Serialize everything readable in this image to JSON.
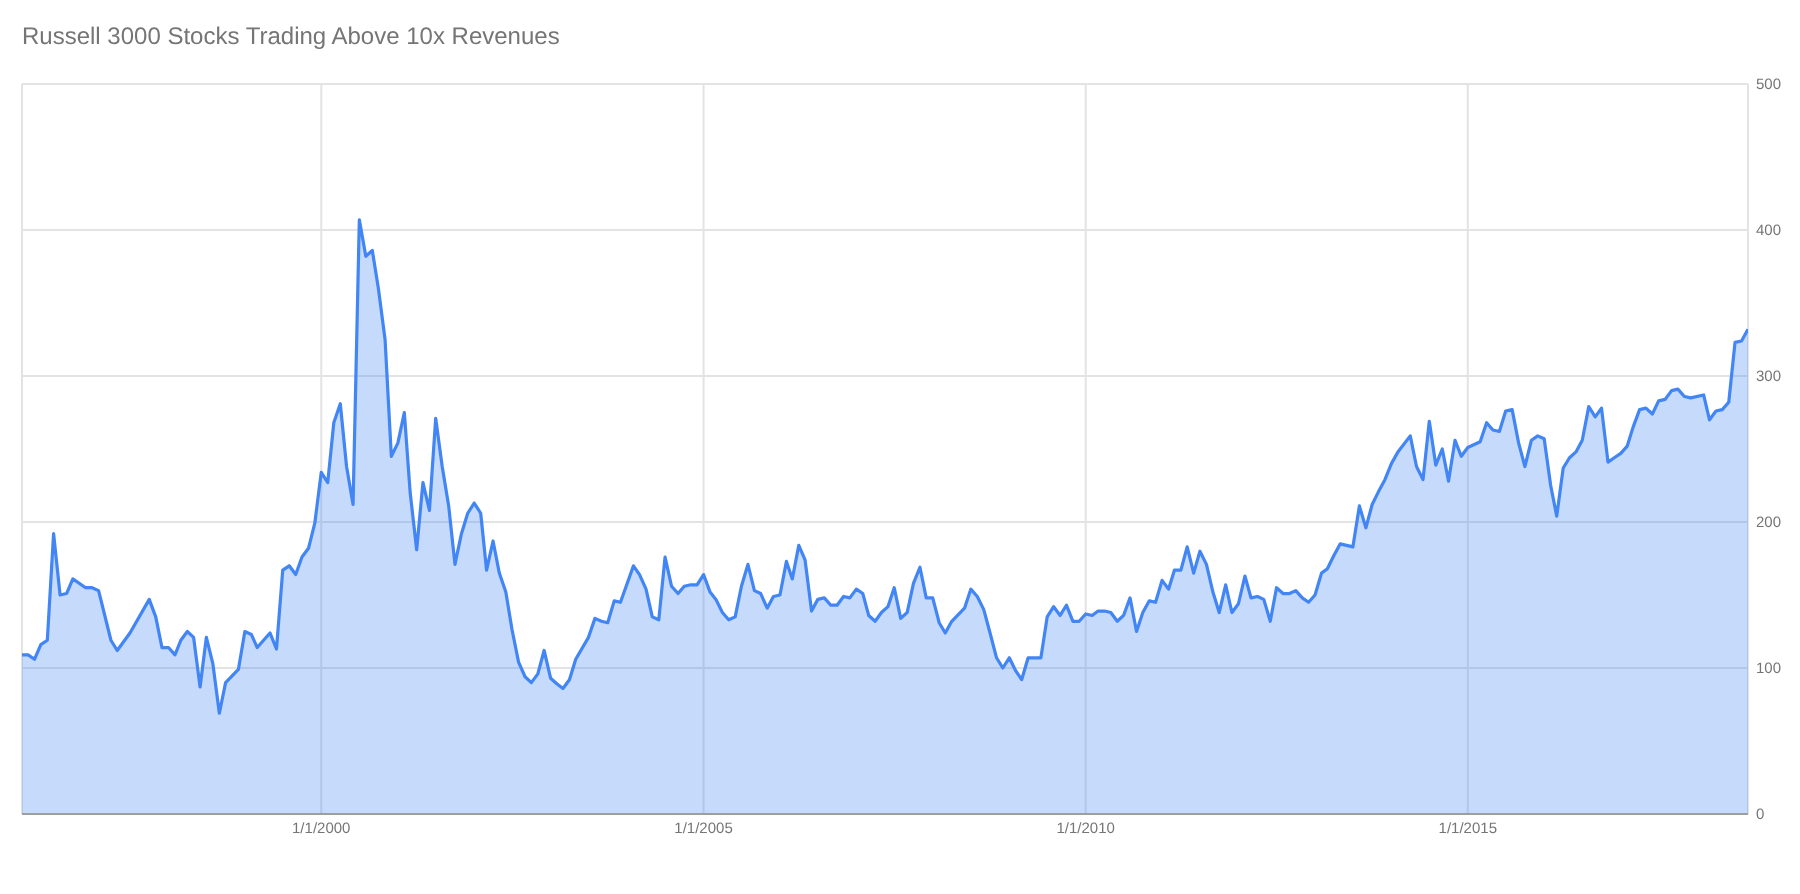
{
  "chart_data": {
    "type": "area",
    "title": "Russell 3000 Stocks Trading Above 10x Revenues",
    "x": [
      "1996-02",
      "1996-03",
      "1996-04",
      "1996-05",
      "1996-06",
      "1996-07",
      "1996-08",
      "1996-09",
      "1996-10",
      "1996-12",
      "1997-01",
      "1997-02",
      "1997-04",
      "1997-05",
      "1997-07",
      "1997-10",
      "1997-11",
      "1997-12",
      "1998-01",
      "1998-02",
      "1998-03",
      "1998-04",
      "1998-05",
      "1998-06",
      "1998-07",
      "1998-08",
      "1998-09",
      "1998-10",
      "1998-12",
      "1999-01",
      "1999-02",
      "1999-03",
      "1999-05",
      "1999-06",
      "1999-07",
      "1999-08",
      "1999-09",
      "1999-10",
      "1999-11",
      "1999-12",
      "2000-01",
      "2000-02",
      "2000-03",
      "2000-04",
      "2000-05",
      "2000-06",
      "2000-07",
      "2000-08",
      "2000-09",
      "2000-10",
      "2000-11",
      "2000-12",
      "2001-01",
      "2001-02",
      "2001-03",
      "2001-04",
      "2001-05",
      "2001-06",
      "2001-07",
      "2001-08",
      "2001-09",
      "2001-10",
      "2001-11",
      "2001-12",
      "2002-01",
      "2002-02",
      "2002-03",
      "2002-04",
      "2002-05",
      "2002-06",
      "2002-07",
      "2002-08",
      "2002-09",
      "2002-10",
      "2002-11",
      "2002-12",
      "2003-01",
      "2003-02",
      "2003-03",
      "2003-04",
      "2003-05",
      "2003-07",
      "2003-08",
      "2003-09",
      "2003-10",
      "2003-11",
      "2003-12",
      "2004-02",
      "2004-03",
      "2004-04",
      "2004-05",
      "2004-06",
      "2004-07",
      "2004-08",
      "2004-09",
      "2004-10",
      "2004-11",
      "2004-12",
      "2005-01",
      "2005-02",
      "2005-03",
      "2005-04",
      "2005-05",
      "2005-06",
      "2005-07",
      "2005-08",
      "2005-09",
      "2005-10",
      "2005-11",
      "2005-12",
      "2006-01",
      "2006-02",
      "2006-03",
      "2006-04",
      "2006-05",
      "2006-06",
      "2006-07",
      "2006-08",
      "2006-09",
      "2006-10",
      "2006-11",
      "2006-12",
      "2007-01",
      "2007-02",
      "2007-03",
      "2007-04",
      "2007-05",
      "2007-06",
      "2007-07",
      "2007-08",
      "2007-09",
      "2007-10",
      "2007-11",
      "2007-12",
      "2008-01",
      "2008-02",
      "2008-03",
      "2008-04",
      "2008-06",
      "2008-07",
      "2008-08",
      "2008-09",
      "2008-10",
      "2008-11",
      "2008-12",
      "2009-01",
      "2009-02",
      "2009-03",
      "2009-04",
      "2009-06",
      "2009-07",
      "2009-08",
      "2009-09",
      "2009-10",
      "2009-11",
      "2009-12",
      "2010-01",
      "2010-02",
      "2010-03",
      "2010-04",
      "2010-05",
      "2010-06",
      "2010-07",
      "2010-08",
      "2010-09",
      "2010-10",
      "2010-11",
      "2010-12",
      "2011-01",
      "2011-02",
      "2011-03",
      "2011-04",
      "2011-05",
      "2011-06",
      "2011-07",
      "2011-08",
      "2011-09",
      "2011-10",
      "2011-11",
      "2011-12",
      "2012-01",
      "2012-02",
      "2012-03",
      "2012-04",
      "2012-05",
      "2012-06",
      "2012-07",
      "2012-08",
      "2012-09",
      "2012-10",
      "2012-11",
      "2012-12",
      "2013-01",
      "2013-02",
      "2013-03",
      "2013-04",
      "2013-05",
      "2013-06",
      "2013-07",
      "2013-08",
      "2013-09",
      "2013-10",
      "2013-11",
      "2013-12",
      "2014-01",
      "2014-02",
      "2014-04",
      "2014-05",
      "2014-06",
      "2014-07",
      "2014-08",
      "2014-09",
      "2014-10",
      "2014-11",
      "2014-12",
      "2015-01",
      "2015-03",
      "2015-04",
      "2015-05",
      "2015-06",
      "2015-07",
      "2015-08",
      "2015-09",
      "2015-10",
      "2015-11",
      "2015-12",
      "2016-01",
      "2016-02",
      "2016-03",
      "2016-04",
      "2016-05",
      "2016-06",
      "2016-07",
      "2016-08",
      "2016-09",
      "2016-10",
      "2016-11",
      "2016-12",
      "2017-01",
      "2017-02",
      "2017-03",
      "2017-04",
      "2017-05",
      "2017-06",
      "2017-07",
      "2017-08",
      "2017-09",
      "2017-10",
      "2017-11",
      "2017-12",
      "2018-02",
      "2018-03",
      "2018-04",
      "2018-05",
      "2018-06",
      "2018-07",
      "2018-08",
      "2018-09"
    ],
    "values": [
      109,
      109,
      106,
      116,
      119,
      192,
      150,
      151,
      161,
      155,
      155,
      153,
      119,
      112,
      124,
      147,
      135,
      114,
      114,
      109,
      119,
      125,
      121,
      87,
      121,
      103,
      69,
      90,
      99,
      125,
      123,
      114,
      124,
      113,
      167,
      170,
      164,
      176,
      182,
      199,
      234,
      227,
      268,
      281,
      238,
      212,
      407,
      382,
      386,
      359,
      325,
      245,
      254,
      275,
      220,
      181,
      227,
      208,
      271,
      238,
      211,
      171,
      192,
      206,
      213,
      206,
      167,
      187,
      165,
      152,
      126,
      104,
      94,
      90,
      96,
      112,
      93,
      89,
      86,
      92,
      106,
      121,
      134,
      132,
      131,
      146,
      145,
      170,
      164,
      154,
      135,
      133,
      176,
      156,
      151,
      156,
      157,
      157,
      164,
      152,
      147,
      138,
      133,
      135,
      156,
      171,
      153,
      151,
      141,
      149,
      150,
      173,
      161,
      184,
      174,
      139,
      147,
      148,
      143,
      143,
      149,
      148,
      154,
      151,
      136,
      132,
      138,
      142,
      155,
      134,
      138,
      158,
      169,
      148,
      148,
      131,
      124,
      132,
      141,
      154,
      149,
      140,
      124,
      107,
      100,
      107,
      98,
      92,
      107,
      107,
      135,
      142,
      136,
      143,
      132,
      132,
      137,
      136,
      139,
      139,
      138,
      132,
      136,
      148,
      125,
      138,
      146,
      145,
      160,
      154,
      167,
      167,
      183,
      165,
      180,
      171,
      152,
      138,
      157,
      138,
      144,
      163,
      148,
      149,
      147,
      132,
      155,
      151,
      151,
      153,
      148,
      145,
      150,
      165,
      168,
      177,
      185,
      184,
      183,
      211,
      196,
      212,
      221,
      229,
      240,
      248,
      259,
      238,
      229,
      269,
      239,
      250,
      228,
      256,
      245,
      251,
      255,
      268,
      263,
      262,
      276,
      277,
      254,
      238,
      256,
      259,
      257,
      225,
      204,
      237,
      244,
      248,
      256,
      279,
      272,
      278,
      241,
      244,
      247,
      252,
      265,
      277,
      278,
      274,
      283,
      284,
      290,
      291,
      286,
      285,
      287,
      270,
      276,
      277,
      282,
      323,
      324,
      332
    ],
    "color": "#4285f4",
    "xlim": [
      "1996-02",
      "2018-09"
    ],
    "xticks": [
      {
        "value": "2000-01-01",
        "label": "1/1/2000"
      },
      {
        "value": "2005-01-01",
        "label": "1/1/2005"
      },
      {
        "value": "2010-01-01",
        "label": "1/1/2010"
      },
      {
        "value": "2015-01-01",
        "label": "1/1/2015"
      }
    ],
    "ylim": [
      0,
      500
    ],
    "yticks": [
      0,
      100,
      200,
      300,
      400,
      500
    ],
    "grid": true
  }
}
